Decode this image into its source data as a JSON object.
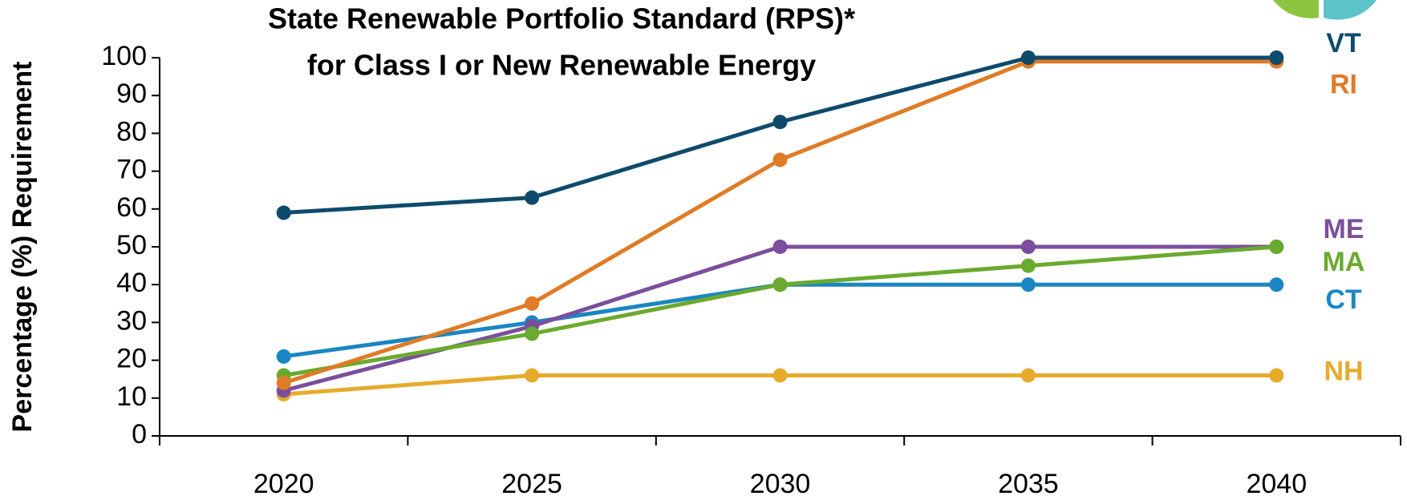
{
  "chart_data": {
    "type": "line",
    "title": "State Renewable Portfolio Standard (RPS)*",
    "subtitle": "for Class I or New Renewable Energy",
    "y_label": "Percentage (%) Requirement",
    "categories": [
      "2020",
      "2025",
      "2030",
      "2035",
      "2040"
    ],
    "series": [
      {
        "name": "NH",
        "color": "#e6ab2b",
        "values": [
          11,
          16,
          16,
          16,
          16
        ]
      },
      {
        "name": "CT",
        "color": "#1a86c4",
        "values": [
          21,
          30,
          40,
          40,
          40
        ]
      },
      {
        "name": "ME",
        "color": "#7b4f9d",
        "values": [
          12,
          29,
          50,
          50,
          50
        ]
      },
      {
        "name": "MA",
        "color": "#6aaa2e",
        "values": [
          16,
          27,
          40,
          45,
          50
        ]
      },
      {
        "name": "RI",
        "color": "#e07b26",
        "values": [
          14,
          35,
          73,
          99,
          99
        ]
      },
      {
        "name": "VT",
        "color": "#0e4a6b",
        "values": [
          59,
          63,
          83,
          100,
          100
        ]
      }
    ],
    "ylim": [
      0,
      100
    ],
    "yticks": [
      0,
      10,
      20,
      30,
      40,
      50,
      60,
      70,
      80,
      90,
      100
    ],
    "grid": false,
    "legend": "right"
  }
}
